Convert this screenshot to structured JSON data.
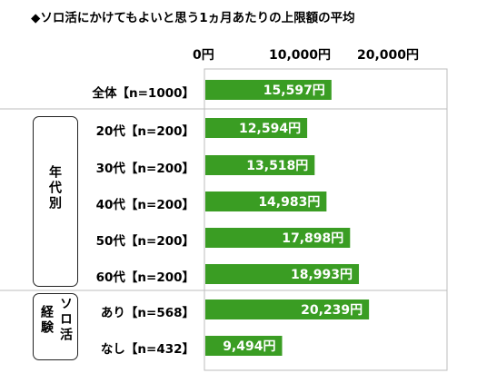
{
  "chart_data": {
    "type": "bar",
    "orientation": "horizontal",
    "title": "◆ソロ活にかけてもよいと思う1ヵ月あたりの上限額の平均",
    "categories": [
      "全体【n=1000】",
      "20代【n=200】",
      "30代【n=200】",
      "40代【n=200】",
      "50代【n=200】",
      "60代【n=200】",
      "あり【n=568】",
      "なし【n=432】"
    ],
    "values": [
      15597,
      12594,
      13518,
      14983,
      17898,
      18993,
      20239,
      9494
    ],
    "value_labels": [
      "15,597円",
      "12,594円",
      "13,518円",
      "14,983円",
      "17,898円",
      "18,993円",
      "20,239円",
      "9,494円"
    ],
    "xlim": [
      0,
      30000
    ],
    "x_ticks": [
      0,
      10000,
      20000
    ],
    "x_tick_labels": [
      "0円",
      "10,000円",
      "20,000円"
    ],
    "groups": [
      {
        "label": "年代別",
        "members": [
          1,
          2,
          3,
          4,
          5
        ]
      },
      {
        "label_left": "経験",
        "label_right": "ソロ活",
        "members": [
          6,
          7
        ]
      }
    ],
    "bar_color": "#3a9d23",
    "grid": false
  }
}
